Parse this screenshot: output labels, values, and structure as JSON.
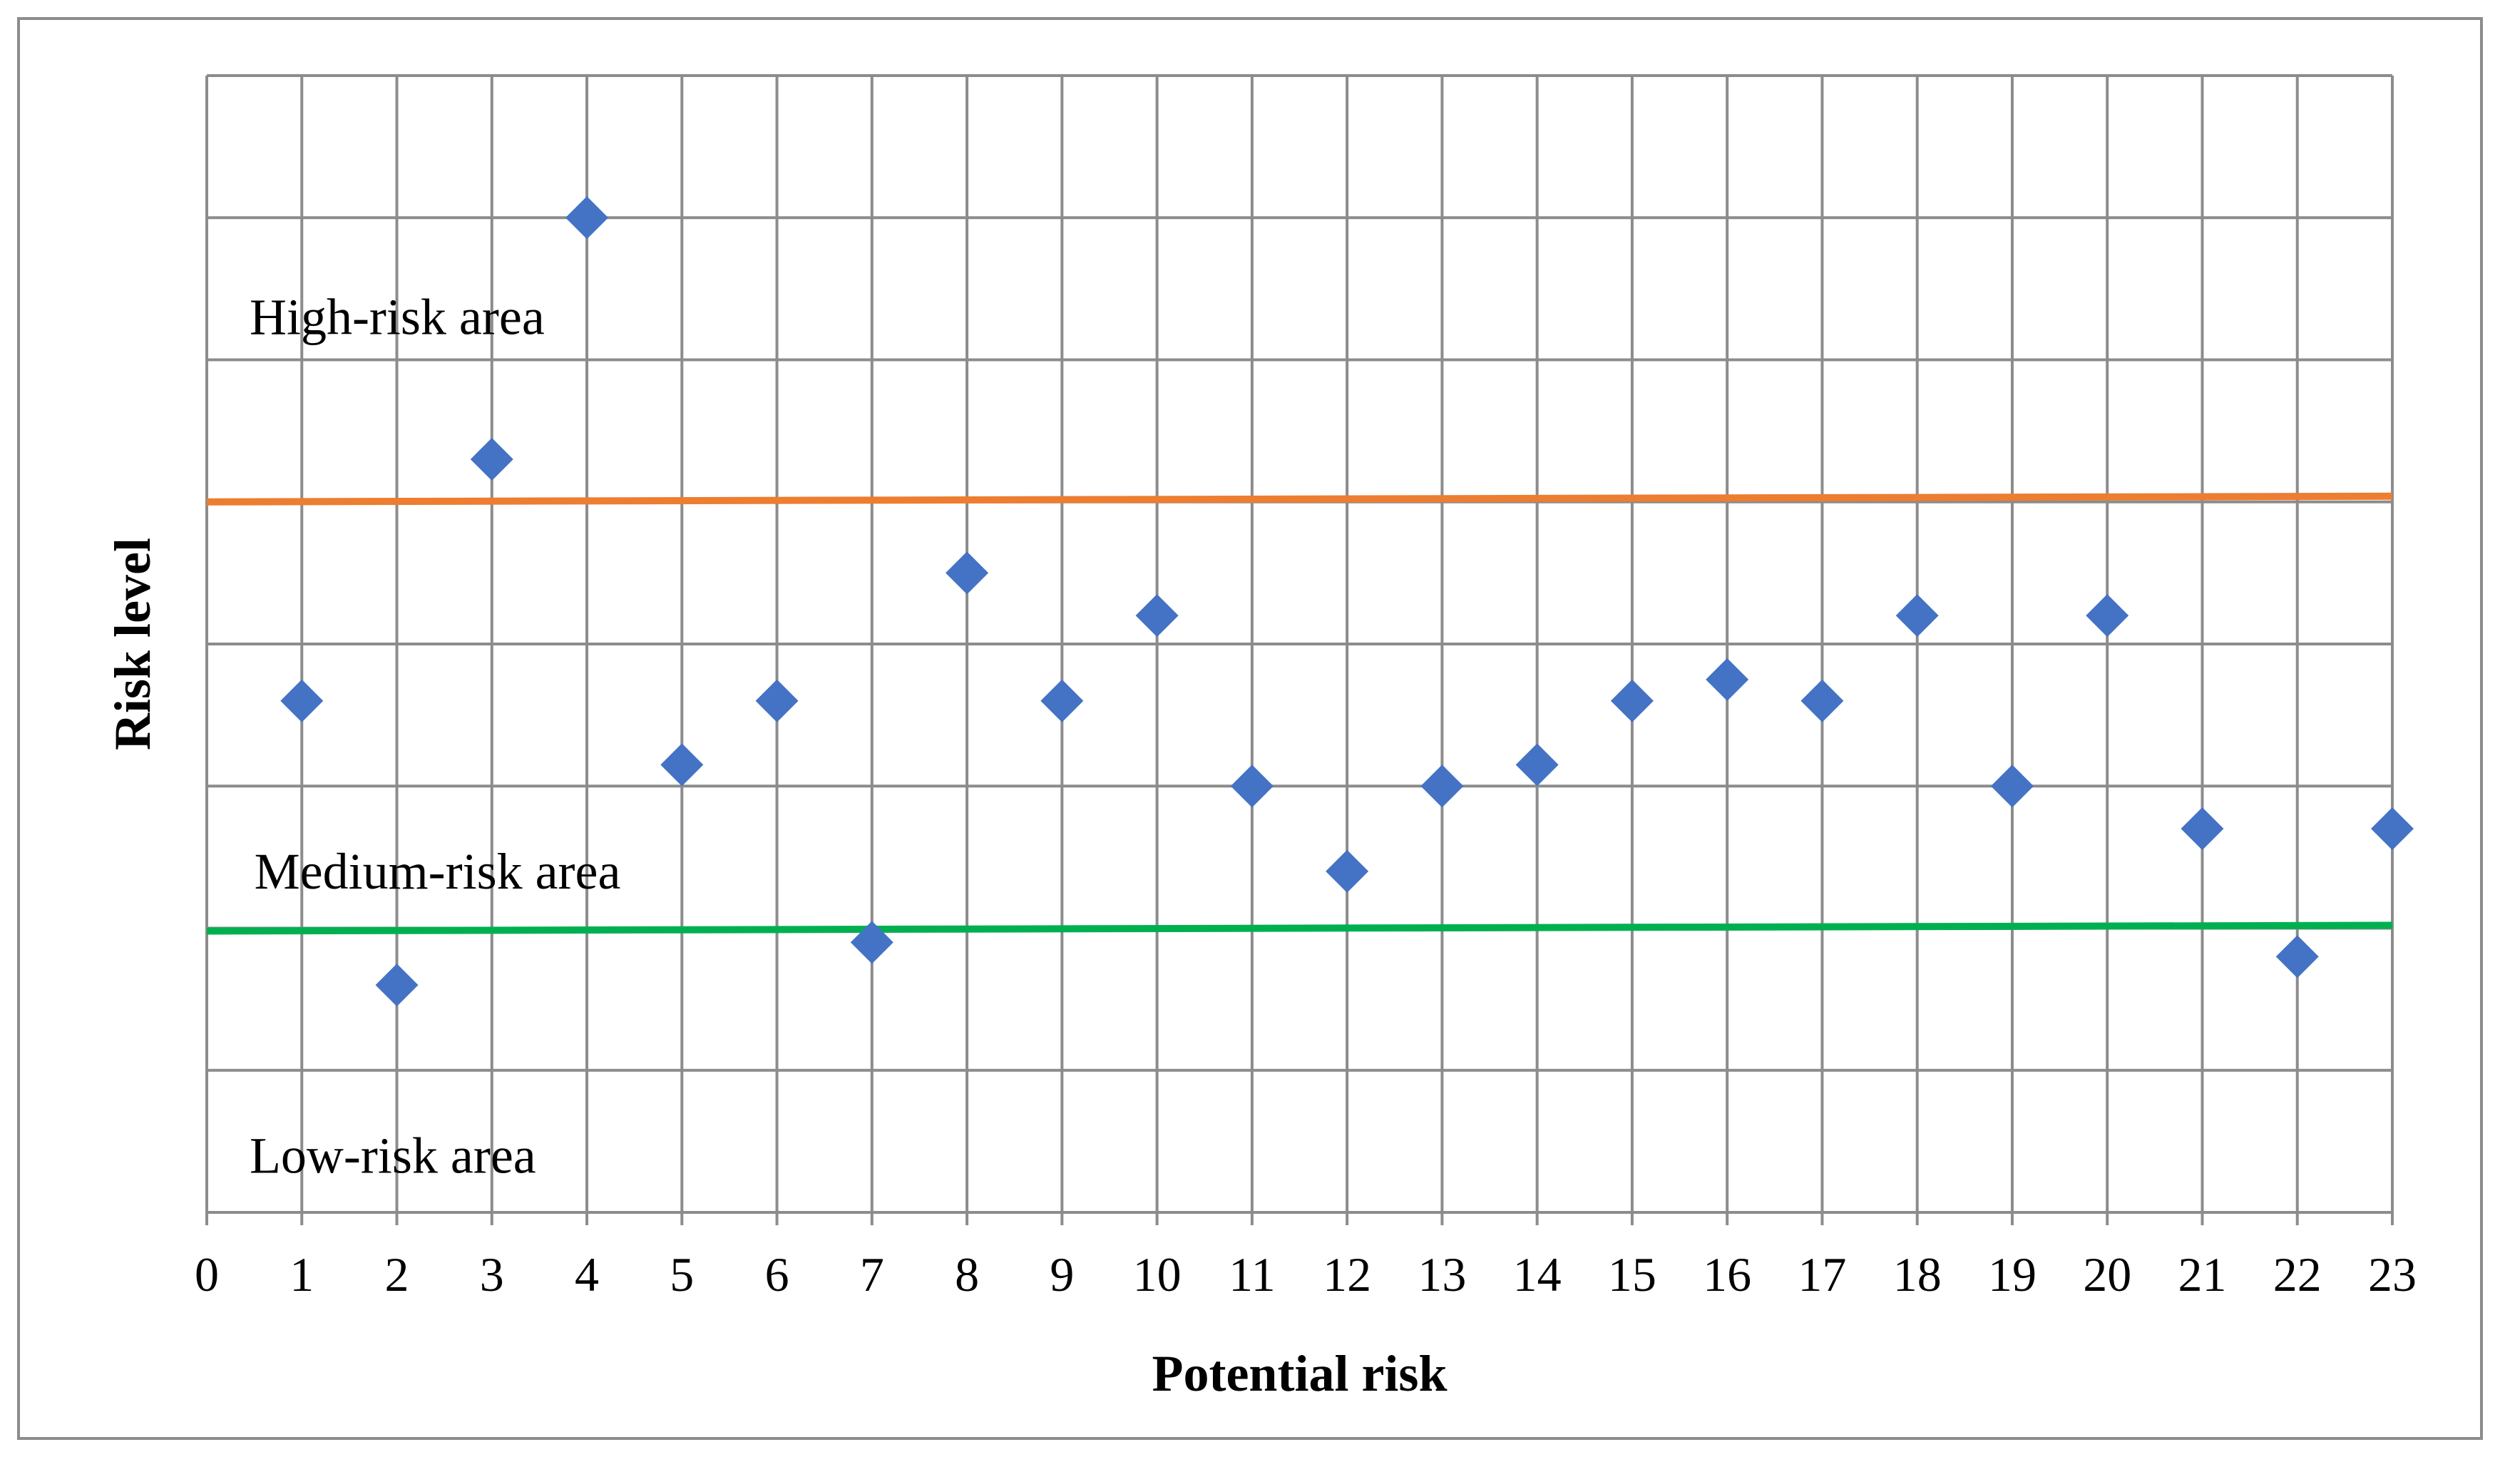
{
  "chart_data": {
    "type": "scatter",
    "title": "",
    "xlabel": "Potential risk",
    "ylabel": "Risk level",
    "xlim": [
      0,
      23
    ],
    "ylim": [
      0,
      8
    ],
    "x_ticks": [
      "0",
      "1",
      "2",
      "3",
      "4",
      "5",
      "6",
      "7",
      "8",
      "9",
      "10",
      "11",
      "12",
      "13",
      "14",
      "15",
      "16",
      "17",
      "18",
      "19",
      "20",
      "21",
      "22",
      "23"
    ],
    "grid": true,
    "y_tick_labels_shown": false,
    "series": [
      {
        "marker": "diamond",
        "color": "#4472C4",
        "points": [
          {
            "x": 1,
            "y": 3.6
          },
          {
            "x": 2,
            "y": 1.6
          },
          {
            "x": 3,
            "y": 5.3
          },
          {
            "x": 4,
            "y": 7.0
          },
          {
            "x": 5,
            "y": 3.15
          },
          {
            "x": 6,
            "y": 3.6
          },
          {
            "x": 7,
            "y": 1.9
          },
          {
            "x": 8,
            "y": 4.5
          },
          {
            "x": 9,
            "y": 3.6
          },
          {
            "x": 10,
            "y": 4.2
          },
          {
            "x": 11,
            "y": 3.0
          },
          {
            "x": 12,
            "y": 2.4
          },
          {
            "x": 13,
            "y": 3.0
          },
          {
            "x": 14,
            "y": 3.15
          },
          {
            "x": 15,
            "y": 3.6
          },
          {
            "x": 16,
            "y": 3.75
          },
          {
            "x": 17,
            "y": 3.6
          },
          {
            "x": 18,
            "y": 4.2
          },
          {
            "x": 19,
            "y": 3.0
          },
          {
            "x": 20,
            "y": 4.2
          },
          {
            "x": 21,
            "y": 2.7
          },
          {
            "x": 22,
            "y": 1.8
          },
          {
            "x": 23,
            "y": 2.7
          }
        ]
      }
    ],
    "thresholds": [
      {
        "id": "high",
        "color": "#ED7D31",
        "y_start": 5.0,
        "y_end": 5.04
      },
      {
        "id": "medium",
        "color": "#00B050",
        "y_start": 1.98,
        "y_end": 2.02
      }
    ],
    "annotations": [
      {
        "text": "High-risk area",
        "x": 0.45,
        "y": 6.3
      },
      {
        "text": "Medium-risk area",
        "x": 0.5,
        "y": 2.4
      },
      {
        "text": "Low-risk area",
        "x": 0.45,
        "y": 0.4
      }
    ]
  }
}
